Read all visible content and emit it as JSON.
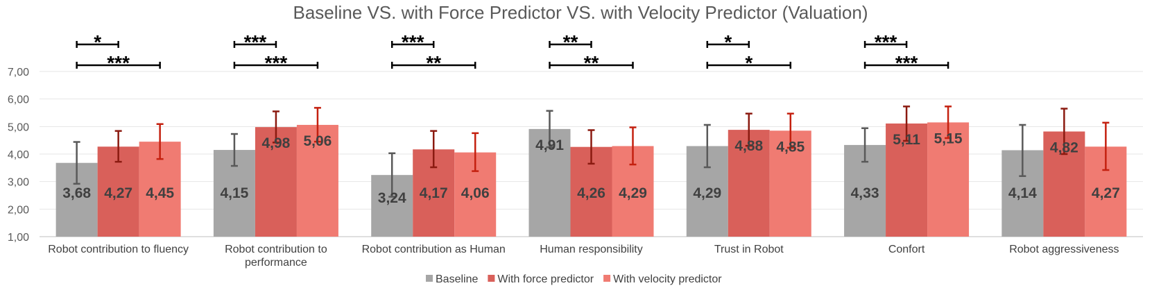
{
  "chart_data": {
    "type": "bar",
    "title": "Baseline VS. with Force Predictor VS. with Velocity Predictor (Valuation)",
    "xlabel": "",
    "ylabel": "",
    "ylim": [
      1,
      7
    ],
    "yticks": [
      "1,00",
      "2,00",
      "3,00",
      "4,00",
      "5,00",
      "6,00",
      "7,00"
    ],
    "grid": true,
    "legend_position": "bottom",
    "categories": [
      [
        "Robot contribution to fluency"
      ],
      [
        "Robot contribution to",
        "performance"
      ],
      [
        "Robot contribution as Human"
      ],
      [
        "Human responsibility"
      ],
      [
        "Trust in Robot"
      ],
      [
        "Confort"
      ],
      [
        "Robot aggressiveness"
      ]
    ],
    "series": [
      {
        "name": "Baseline",
        "color": "#a6a6a6",
        "error_color": "#595959",
        "values": [
          3.68,
          4.15,
          3.24,
          4.91,
          4.29,
          4.33,
          4.14
        ],
        "labels": [
          "3,68",
          "4,15",
          "3,24",
          "4,91",
          "4,29",
          "4,33",
          "4,14"
        ],
        "err_low": [
          2.92,
          3.57,
          2.45,
          4.25,
          3.52,
          3.72,
          3.2
        ],
        "err_high": [
          4.44,
          4.73,
          4.03,
          5.57,
          5.06,
          4.94,
          5.06
        ]
      },
      {
        "name": "With force predictor",
        "color": "#d9605a",
        "error_color": "#8b1a10",
        "values": [
          4.27,
          4.98,
          4.17,
          4.26,
          4.88,
          5.11,
          4.82
        ],
        "labels": [
          "4,27",
          "4,98",
          "4,17",
          "4,26",
          "4,88",
          "5,11",
          "4,82"
        ],
        "err_low": [
          3.72,
          4.42,
          3.52,
          3.65,
          4.3,
          4.48,
          4.0
        ],
        "err_high": [
          4.84,
          5.55,
          4.84,
          4.87,
          5.47,
          5.73,
          5.65
        ]
      },
      {
        "name": "With velocity predictor",
        "color": "#f07b72",
        "error_color": "#c4200f",
        "values": [
          4.45,
          5.06,
          4.06,
          4.29,
          4.85,
          5.15,
          4.27
        ],
        "labels": [
          "4,45",
          "5,06",
          "4,06",
          "4,29",
          "4,85",
          "5,15",
          "4,27"
        ],
        "err_low": [
          3.82,
          4.45,
          3.38,
          3.62,
          4.23,
          4.58,
          3.42
        ],
        "err_high": [
          5.09,
          5.68,
          4.76,
          4.97,
          5.47,
          5.73,
          5.14
        ]
      }
    ],
    "significance": [
      {
        "category": 0,
        "short": "*",
        "long": "***"
      },
      {
        "category": 1,
        "short": "***",
        "long": "***"
      },
      {
        "category": 2,
        "short": "***",
        "long": "**"
      },
      {
        "category": 3,
        "short": "**",
        "long": "**"
      },
      {
        "category": 4,
        "short": "*",
        "long": "*"
      },
      {
        "category": 5,
        "short": "***",
        "long": "***"
      }
    ]
  }
}
